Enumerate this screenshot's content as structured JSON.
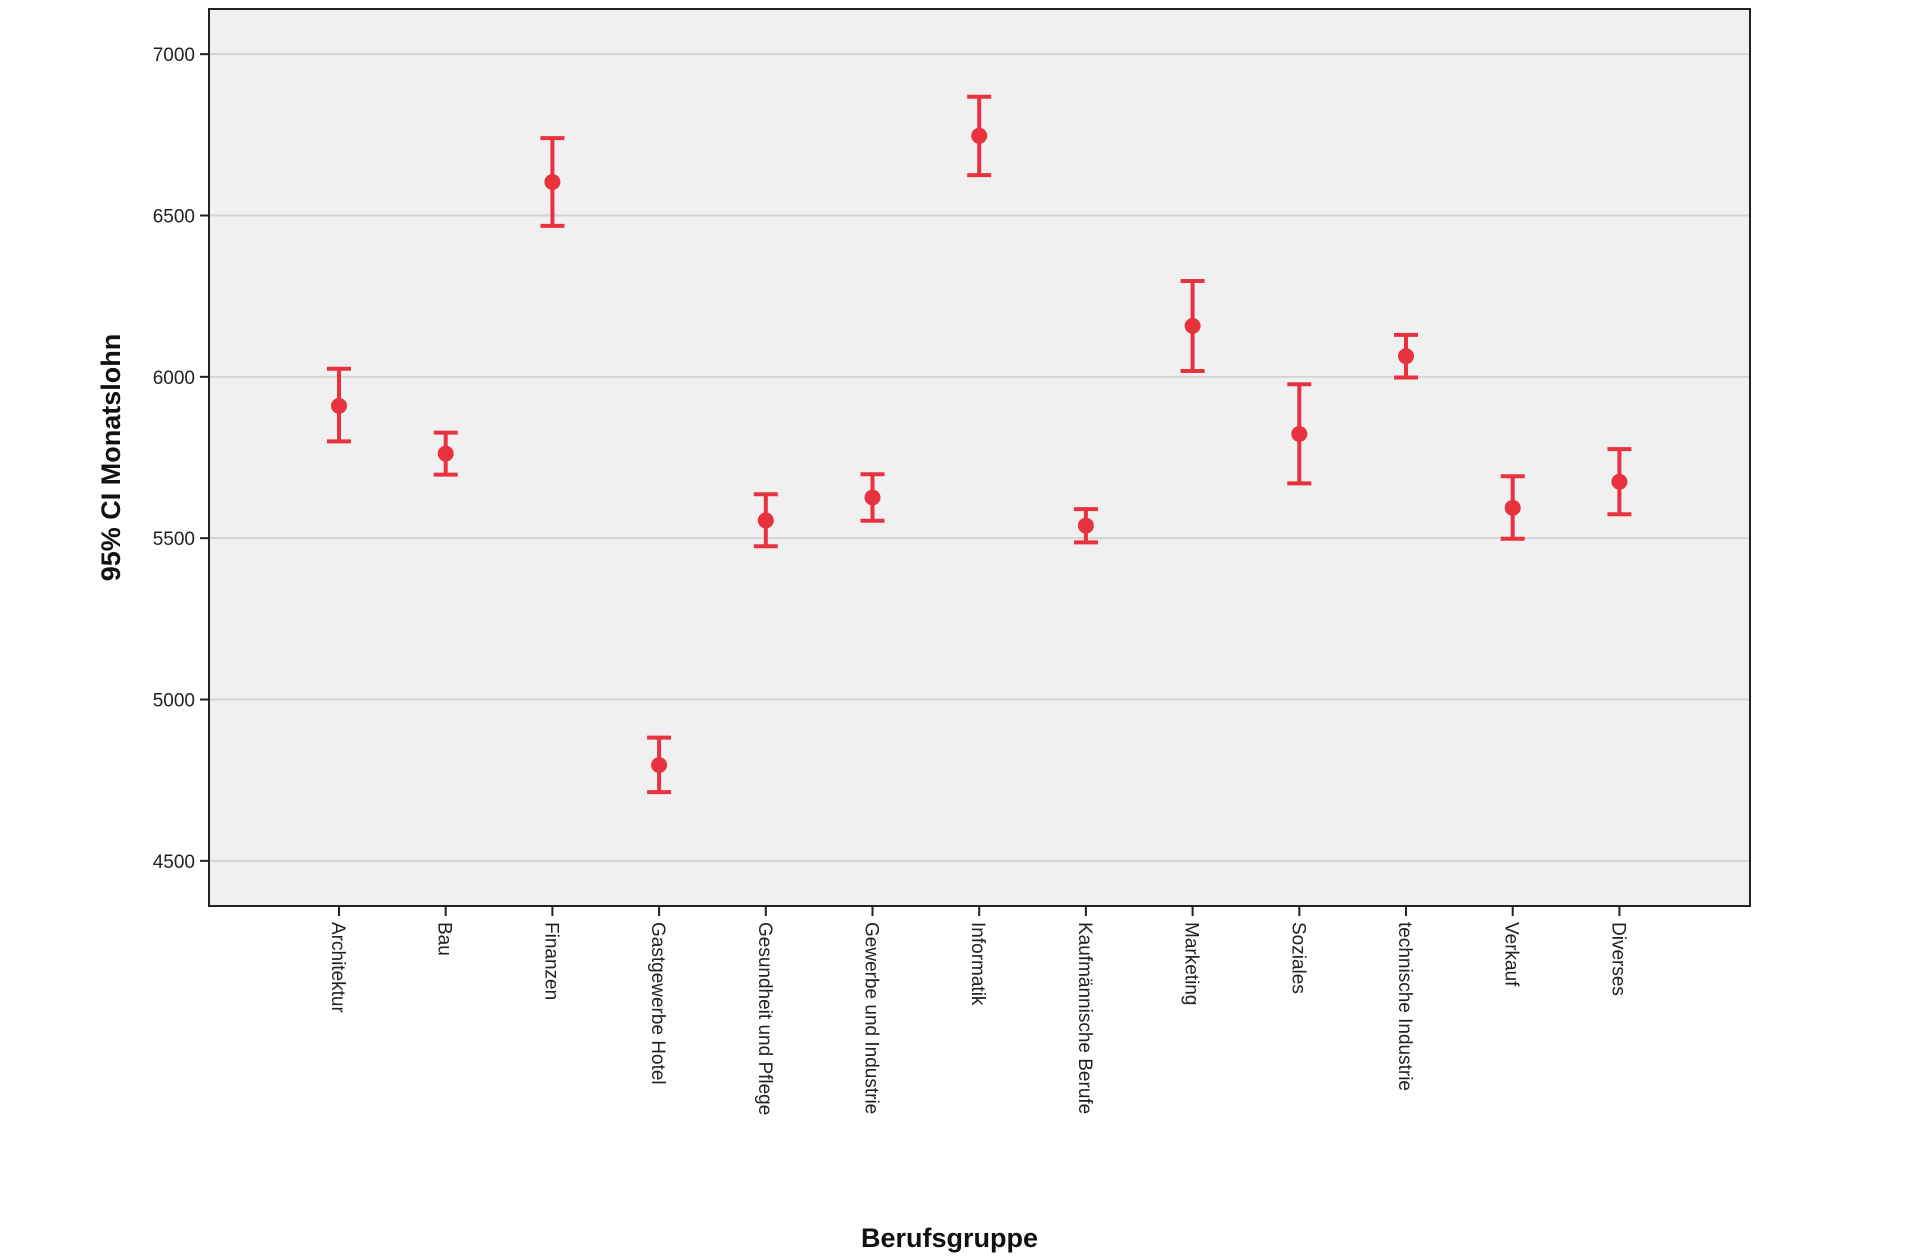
{
  "chart_data": {
    "type": "errorbar",
    "xlabel": "Berufsgruppe",
    "ylabel": "95% CI Monatslohn",
    "ylim": [
      4360,
      7140
    ],
    "yticks": [
      4500,
      5000,
      5500,
      6000,
      6500,
      7000
    ],
    "grid": "horizontal",
    "colors": {
      "marker": "#e8333f",
      "plot_bg": "#f0f0f0",
      "grid": "#d4d4d4",
      "axis": "#222222"
    },
    "categories": [
      "Architektur",
      "Bau",
      "Finanzen",
      "Gastgewerbe Hotel",
      "Gesundheit und Pflege",
      "Gewerbe und Industrie",
      "Informatik",
      "Kaufm&auml;nnische Berufe",
      "Marketing",
      "Soziales",
      "technische Industrie",
      "Verkauf",
      "Diverses"
    ],
    "means": [
      5910,
      5762,
      6604,
      4797,
      5555,
      5626,
      6747,
      5539,
      6158,
      5823,
      6064,
      5594,
      5675
    ],
    "lower": [
      5800,
      5697,
      6468,
      4713,
      5475,
      5554,
      6625,
      5487,
      6018,
      5670,
      5998,
      5498,
      5574
    ],
    "upper": [
      6025,
      5827,
      6740,
      4882,
      5636,
      5698,
      6868,
      5590,
      6297,
      5977,
      6130,
      5692,
      5776
    ]
  }
}
